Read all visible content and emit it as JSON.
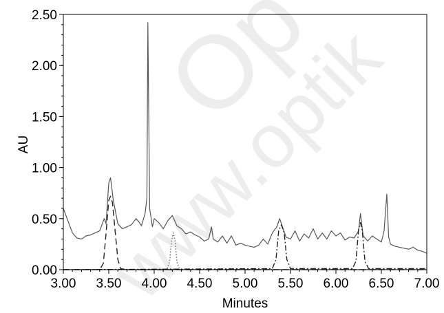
{
  "watermark": {
    "line1": "Op",
    "line2": "www.optik"
  },
  "chart_data": {
    "type": "line",
    "title": "",
    "xlabel": "Minutes",
    "ylabel": "AU",
    "xlim": [
      3.0,
      7.0
    ],
    "ylim": [
      0.0,
      2.5
    ],
    "xticks": [
      "3.00",
      "3.50",
      "4.00",
      "4.50",
      "5.00",
      "5.50",
      "6.00",
      "6.50",
      "7.00"
    ],
    "yticks": [
      "0.00",
      "0.50",
      "1.00",
      "1.50",
      "2.00",
      "2.50"
    ],
    "grid": false,
    "legend": "none",
    "series": [
      {
        "style": "solid",
        "color": "#555555",
        "x": [
          3.0,
          3.05,
          3.1,
          3.15,
          3.2,
          3.25,
          3.3,
          3.35,
          3.4,
          3.45,
          3.47,
          3.5,
          3.52,
          3.55,
          3.6,
          3.65,
          3.7,
          3.75,
          3.8,
          3.83,
          3.86,
          3.9,
          3.92,
          3.93,
          3.95,
          3.98,
          4.0,
          4.05,
          4.1,
          4.15,
          4.2,
          4.25,
          4.3,
          4.35,
          4.4,
          4.45,
          4.5,
          4.55,
          4.6,
          4.63,
          4.65,
          4.7,
          4.75,
          4.8,
          4.85,
          4.9,
          4.95,
          5.0,
          5.05,
          5.1,
          5.15,
          5.2,
          5.25,
          5.3,
          5.35,
          5.38,
          5.4,
          5.45,
          5.5,
          5.55,
          5.6,
          5.65,
          5.7,
          5.75,
          5.8,
          5.85,
          5.9,
          5.95,
          6.0,
          6.05,
          6.1,
          6.15,
          6.2,
          6.25,
          6.27,
          6.3,
          6.35,
          6.4,
          6.45,
          6.5,
          6.53,
          6.56,
          6.58,
          6.6,
          6.65,
          6.7,
          6.75,
          6.8,
          6.85,
          6.9,
          6.95,
          7.0
        ],
        "y": [
          0.6,
          0.48,
          0.36,
          0.31,
          0.3,
          0.33,
          0.34,
          0.36,
          0.38,
          0.5,
          0.45,
          0.85,
          0.9,
          0.68,
          0.45,
          0.4,
          0.42,
          0.44,
          0.5,
          0.47,
          0.43,
          0.55,
          0.7,
          2.42,
          0.6,
          0.42,
          0.5,
          0.46,
          0.4,
          0.48,
          0.53,
          0.43,
          0.4,
          0.35,
          0.37,
          0.34,
          0.32,
          0.28,
          0.3,
          0.42,
          0.3,
          0.27,
          0.33,
          0.26,
          0.33,
          0.24,
          0.26,
          0.24,
          0.23,
          0.22,
          0.24,
          0.3,
          0.25,
          0.36,
          0.42,
          0.5,
          0.45,
          0.32,
          0.3,
          0.38,
          0.28,
          0.35,
          0.31,
          0.4,
          0.3,
          0.36,
          0.3,
          0.38,
          0.33,
          0.36,
          0.29,
          0.32,
          0.31,
          0.38,
          0.55,
          0.33,
          0.28,
          0.33,
          0.3,
          0.27,
          0.38,
          0.74,
          0.32,
          0.25,
          0.23,
          0.22,
          0.21,
          0.2,
          0.22,
          0.19,
          0.18,
          0.16
        ]
      },
      {
        "style": "dashed",
        "color": "#222222",
        "x": [
          3.0,
          3.4,
          3.44,
          3.47,
          3.5,
          3.52,
          3.54,
          3.57,
          3.6,
          3.63,
          3.7,
          7.0
        ],
        "y": [
          0.0,
          0.0,
          0.06,
          0.35,
          0.68,
          0.72,
          0.66,
          0.38,
          0.1,
          0.01,
          0.0,
          0.0
        ]
      },
      {
        "style": "dotted",
        "color": "#666666",
        "x": [
          3.0,
          4.14,
          4.17,
          4.19,
          4.21,
          4.23,
          4.25,
          4.28,
          7.0
        ],
        "y": [
          0.0,
          0.0,
          0.08,
          0.28,
          0.36,
          0.28,
          0.08,
          0.0,
          0.0
        ]
      },
      {
        "style": "dashdot",
        "color": "#222222",
        "x": [
          3.0,
          5.3,
          5.34,
          5.37,
          5.4,
          5.43,
          5.46,
          5.5,
          6.18,
          6.22,
          6.25,
          6.27,
          6.29,
          6.32,
          6.36,
          7.0
        ],
        "y": [
          0.0,
          0.01,
          0.1,
          0.38,
          0.44,
          0.36,
          0.1,
          0.01,
          0.01,
          0.08,
          0.4,
          0.46,
          0.38,
          0.08,
          0.01,
          0.01
        ]
      }
    ]
  }
}
